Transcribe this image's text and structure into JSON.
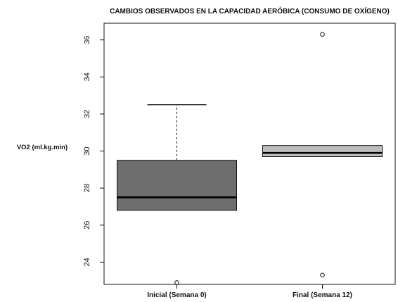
{
  "chart_data": {
    "type": "boxplot",
    "title": "CAMBIOS OBSERVADOS EN LA CAPACIDAD AERÓBICA (CONSUMO DE OXÍGENO)",
    "xlabel": "",
    "ylabel": "VO2 (ml.kg.min)",
    "ylim": [
      22.8,
      36.9
    ],
    "yticks": [
      24,
      26,
      28,
      30,
      32,
      34,
      36
    ],
    "grid": false,
    "categories": [
      "Inicial (Semana 0)",
      "Final (Semana 12)"
    ],
    "boxes": [
      {
        "category": "Inicial (Semana 0)",
        "whisker_low": 26.8,
        "q1": 26.8,
        "median": 27.5,
        "q3": 29.5,
        "whisker_high": 32.5,
        "outliers": [
          22.9
        ],
        "fill": "#6e6e6e"
      },
      {
        "category": "Final (Semana 12)",
        "whisker_low": 29.7,
        "q1": 29.7,
        "median": 29.9,
        "q3": 30.3,
        "whisker_high": 30.3,
        "outliers": [
          36.3,
          23.3
        ],
        "fill": "#bdbdbd"
      }
    ]
  }
}
